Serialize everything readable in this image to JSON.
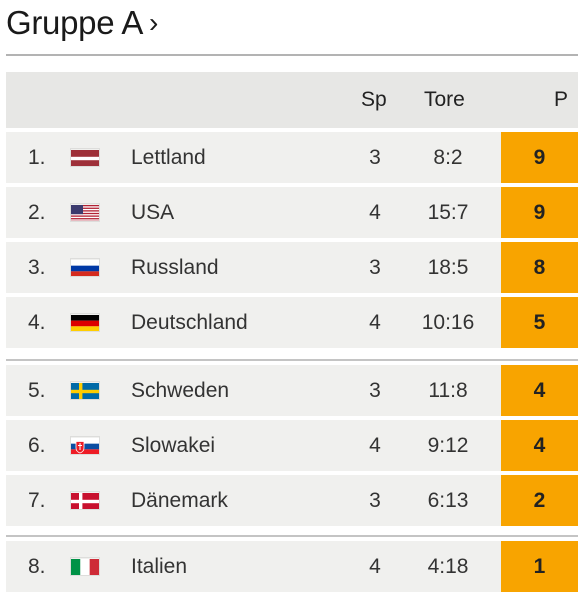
{
  "group": {
    "title": "Gruppe A",
    "chevron": "›"
  },
  "columns": {
    "sp": "Sp",
    "goals": "Tore",
    "points": "P"
  },
  "colors": {
    "points_bg": "#f8a400",
    "row_bg": "#f0f0ee",
    "header_bg": "#e7e7e5"
  },
  "rows": [
    {
      "rank": "1.",
      "flag": "flag-latvia-icon",
      "team": "Lettland",
      "sp": "3",
      "goals": "8:2",
      "points": "9"
    },
    {
      "rank": "2.",
      "flag": "flag-usa-icon",
      "team": "USA",
      "sp": "4",
      "goals": "15:7",
      "points": "9"
    },
    {
      "rank": "3.",
      "flag": "flag-russia-icon",
      "team": "Russland",
      "sp": "3",
      "goals": "18:5",
      "points": "8"
    },
    {
      "rank": "4.",
      "flag": "flag-germany-icon",
      "team": "Deutschland",
      "sp": "4",
      "goals": "10:16",
      "points": "5"
    },
    {
      "rank": "5.",
      "flag": "flag-sweden-icon",
      "team": "Schweden",
      "sp": "3",
      "goals": "11:8",
      "points": "4"
    },
    {
      "rank": "6.",
      "flag": "flag-slovakia-icon",
      "team": "Slowakei",
      "sp": "4",
      "goals": "9:12",
      "points": "4"
    },
    {
      "rank": "7.",
      "flag": "flag-denmark-icon",
      "team": "Dänemark",
      "sp": "3",
      "goals": "6:13",
      "points": "2"
    },
    {
      "rank": "8.",
      "flag": "flag-italy-icon",
      "team": "Italien",
      "sp": "4",
      "goals": "4:18",
      "points": "1"
    }
  ]
}
